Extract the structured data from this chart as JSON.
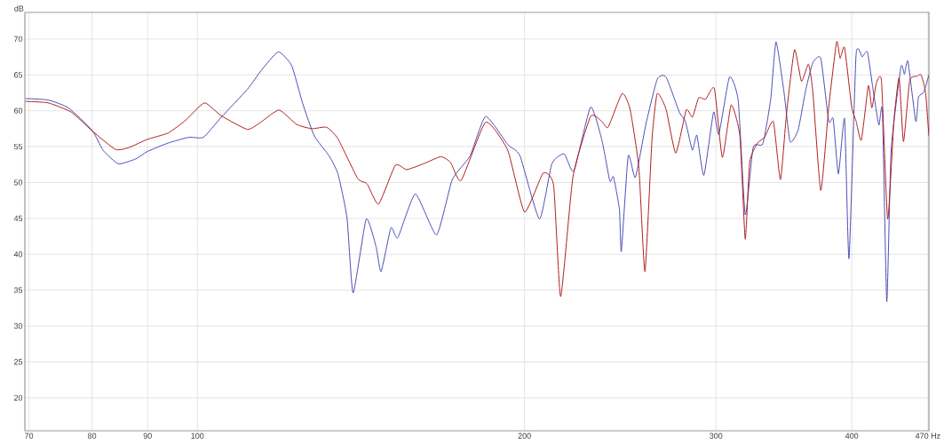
{
  "chart_data": {
    "type": "line",
    "ylabel": "dB",
    "xlim": [
      69.4,
      471
    ],
    "ylim": [
      15.4,
      73.7
    ],
    "log": "x",
    "grid": true,
    "marker": "none",
    "line_style": "solid",
    "xticks": [
      70,
      80,
      90,
      100,
      200,
      300,
      400,
      {
        "value": 470,
        "label": "470 Hz"
      }
    ],
    "yticks": [
      20,
      25,
      30,
      35,
      40,
      45,
      50,
      55,
      60,
      65,
      70
    ],
    "series": [
      {
        "color": "#4b4db5",
        "x": [
          69.5,
          72.9,
          76.1,
          80.0,
          81.9,
          84.6,
          87.8,
          89.9,
          94.0,
          98.2,
          101.3,
          105.2,
          111.2,
          114.6,
          118.7,
          122.1,
          125.0,
          128.1,
          132.2,
          134.7,
          137.3,
          139.1,
          143.0,
          146.0,
          147.6,
          150.7,
          152.9,
          158.7,
          166.0,
          171.6,
          178.2,
          184.2,
          193.0,
          198.1,
          206.4,
          211.9,
          217.5,
          222.0,
          230.0,
          235.6,
          239.6,
          241.4,
          244.5,
          245.5,
          249.1,
          252.9,
          258.6,
          264.9,
          269.9,
          277.6,
          281.2,
          285.4,
          288.1,
          292.4,
          298.5,
          301.8,
          308.7,
          314.5,
          319.2,
          324.6,
          331.3,
          336.9,
          340.7,
          346.5,
          351.0,
          357.0,
          363.0,
          368.4,
          374.6,
          381.0,
          384.6,
          388.9,
          394.0,
          397.7,
          403.6,
          408.9,
          413.5,
          418.2,
          423.6,
          426.8,
          430.8,
          434.8,
          443.9,
          447.2,
          450.5,
          458.1,
          460.7,
          465.9,
          471
        ],
        "values": [
          61.7,
          61.5,
          60.4,
          57.3,
          54.5,
          52.6,
          53.3,
          54.3,
          55.5,
          56.3,
          56.3,
          59.1,
          63.0,
          65.7,
          68.2,
          66.3,
          61.0,
          56.5,
          53.7,
          51.2,
          45.1,
          34.6,
          44.9,
          41.1,
          37.6,
          43.7,
          42.3,
          48.4,
          42.7,
          50.4,
          53.7,
          59.2,
          55.3,
          53.7,
          44.9,
          52.6,
          54.0,
          51.6,
          60.5,
          55.9,
          50.2,
          50.8,
          46.3,
          40.4,
          53.7,
          50.7,
          58.1,
          64.4,
          64.7,
          59.8,
          58.5,
          54.5,
          56.6,
          51.0,
          59.8,
          56.7,
          64.7,
          61.4,
          45.5,
          54.9,
          55.4,
          61.6,
          69.6,
          62.6,
          55.7,
          57.3,
          63.0,
          66.7,
          67.3,
          58.5,
          58.9,
          51.2,
          58.9,
          39.4,
          67.7,
          67.5,
          68.2,
          63.2,
          58.0,
          60.0,
          33.4,
          54.5,
          66.1,
          65.1,
          66.9,
          58.5,
          61.9,
          62.6,
          65.0
        ]
      },
      {
        "color": "#b01c1c",
        "x": [
          69.5,
          72.9,
          76.6,
          80.0,
          84.1,
          86.6,
          89.9,
          94.0,
          97.6,
          101.5,
          105.2,
          111.2,
          114.6,
          118.9,
          123.4,
          127.4,
          131.5,
          134.7,
          140.4,
          143.3,
          146.8,
          152.1,
          155.8,
          161.4,
          167.5,
          171.0,
          174.9,
          184.2,
          193.0,
          200.0,
          208.0,
          212.7,
          215.9,
          221.6,
          230.0,
          235.6,
          238.7,
          245.9,
          250.1,
          254.8,
          258.1,
          262.0,
          264.9,
          269.9,
          275.5,
          281.7,
          285.4,
          289.2,
          293.5,
          299.0,
          304.1,
          309.8,
          315.6,
          319.2,
          322.2,
          327.6,
          332.6,
          338.8,
          343.9,
          348.4,
          354.3,
          359.6,
          365.0,
          368.4,
          374.6,
          381.0,
          387.4,
          390.3,
          394.0,
          399.9,
          403.6,
          408.2,
          414.3,
          417.4,
          421.3,
          426.0,
          431.6,
          437.3,
          442.2,
          446.3,
          452.2,
          459.0,
          463.3,
          467.6,
          471
        ],
        "values": [
          61.3,
          61.1,
          59.8,
          57.2,
          54.6,
          54.9,
          56.0,
          56.9,
          58.7,
          61.1,
          59.3,
          57.4,
          58.5,
          60.1,
          58.1,
          57.5,
          57.7,
          56.1,
          50.6,
          49.8,
          47.0,
          52.4,
          51.8,
          52.6,
          53.6,
          52.8,
          50.3,
          58.4,
          54.5,
          45.9,
          51.3,
          49.6,
          34.1,
          50.8,
          59.2,
          58.5,
          57.7,
          62.4,
          60.2,
          52.0,
          37.6,
          56.1,
          62.4,
          60.2,
          54.1,
          60.1,
          59.1,
          61.8,
          61.6,
          63.1,
          53.5,
          60.8,
          56.5,
          42.1,
          52.8,
          55.5,
          56.3,
          58.5,
          50.4,
          59.6,
          68.5,
          64.1,
          66.5,
          62.6,
          48.9,
          60.6,
          69.6,
          67.3,
          68.8,
          60.6,
          58.6,
          55.9,
          63.5,
          60.4,
          63.8,
          64.1,
          44.9,
          58.5,
          64.6,
          55.7,
          64.2,
          64.8,
          65.0,
          62.6,
          56.5
        ]
      }
    ]
  }
}
